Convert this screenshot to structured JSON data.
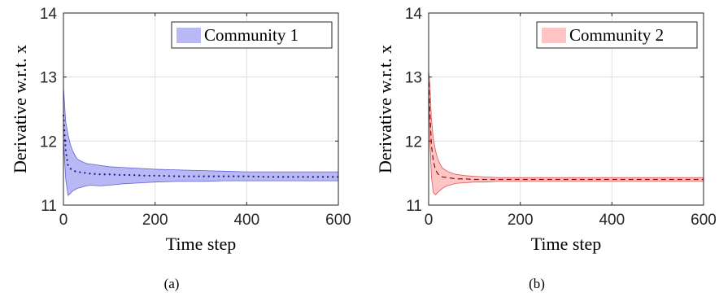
{
  "chart_data": [
    {
      "type": "area",
      "panel_caption": "(a)",
      "xlabel": "Time step",
      "ylabel": "Derivative w.r.t. x",
      "xlim": [
        0,
        600
      ],
      "ylim": [
        11,
        14
      ],
      "xticks": [
        "0",
        "200",
        "400",
        "600"
      ],
      "yticks": [
        "11",
        "12",
        "13",
        "14"
      ],
      "grid": true,
      "legend": {
        "placement": "top-right",
        "entries": [
          "Community 1"
        ]
      },
      "series": [
        {
          "name": "Community 1",
          "color": "#3030c8",
          "fill_color": "#b8b8f5",
          "line_style": "dotted",
          "x": [
            0,
            5,
            10,
            15,
            20,
            25,
            30,
            40,
            50,
            60,
            80,
            100,
            125,
            150,
            175,
            200,
            250,
            300,
            350,
            400,
            450,
            500,
            550,
            600
          ],
          "mean": [
            12.4,
            11.85,
            11.62,
            11.57,
            11.55,
            11.53,
            11.52,
            11.51,
            11.5,
            11.49,
            11.48,
            11.48,
            11.47,
            11.47,
            11.46,
            11.46,
            11.45,
            11.45,
            11.45,
            11.45,
            11.44,
            11.44,
            11.44,
            11.44
          ],
          "upper": [
            12.85,
            12.3,
            12.1,
            11.95,
            11.85,
            11.78,
            11.72,
            11.68,
            11.65,
            11.64,
            11.62,
            11.6,
            11.59,
            11.58,
            11.57,
            11.56,
            11.55,
            11.54,
            11.53,
            11.52,
            11.52,
            11.52,
            11.52,
            11.52
          ],
          "lower": [
            12.0,
            11.4,
            11.15,
            11.18,
            11.22,
            11.24,
            11.26,
            11.28,
            11.3,
            11.31,
            11.3,
            11.31,
            11.33,
            11.34,
            11.35,
            11.36,
            11.37,
            11.37,
            11.38,
            11.38,
            11.38,
            11.38,
            11.38,
            11.38
          ]
        }
      ]
    },
    {
      "type": "area",
      "panel_caption": "(b)",
      "xlabel": "Time step",
      "ylabel": "Derivative w.r.t. x",
      "xlim": [
        0,
        600
      ],
      "ylim": [
        11,
        14
      ],
      "xticks": [
        "0",
        "200",
        "400",
        "600"
      ],
      "yticks": [
        "11",
        "12",
        "13",
        "14"
      ],
      "grid": true,
      "legend": {
        "placement": "top-right",
        "entries": [
          "Community 2"
        ]
      },
      "series": [
        {
          "name": "Community 2",
          "color": "#c81e1e",
          "fill_color": "#ffc4c4",
          "line_style": "dashed",
          "x": [
            0,
            3,
            6,
            10,
            15,
            20,
            25,
            30,
            40,
            50,
            60,
            80,
            100,
            125,
            150,
            200,
            250,
            300,
            400,
            500,
            600
          ],
          "mean": [
            13.05,
            12.4,
            11.95,
            11.7,
            11.55,
            11.49,
            11.46,
            11.44,
            11.43,
            11.42,
            11.41,
            11.41,
            11.4,
            11.4,
            11.4,
            11.4,
            11.4,
            11.4,
            11.4,
            11.4,
            11.4
          ],
          "upper": [
            13.1,
            12.85,
            12.35,
            12.05,
            11.85,
            11.72,
            11.64,
            11.58,
            11.53,
            11.5,
            11.48,
            11.46,
            11.45,
            11.44,
            11.43,
            11.43,
            11.43,
            11.43,
            11.43,
            11.43,
            11.43
          ],
          "lower": [
            12.9,
            11.95,
            11.45,
            11.2,
            11.16,
            11.2,
            11.23,
            11.26,
            11.3,
            11.32,
            11.34,
            11.35,
            11.36,
            11.36,
            11.37,
            11.37,
            11.37,
            11.37,
            11.37,
            11.37,
            11.37
          ]
        }
      ]
    }
  ]
}
